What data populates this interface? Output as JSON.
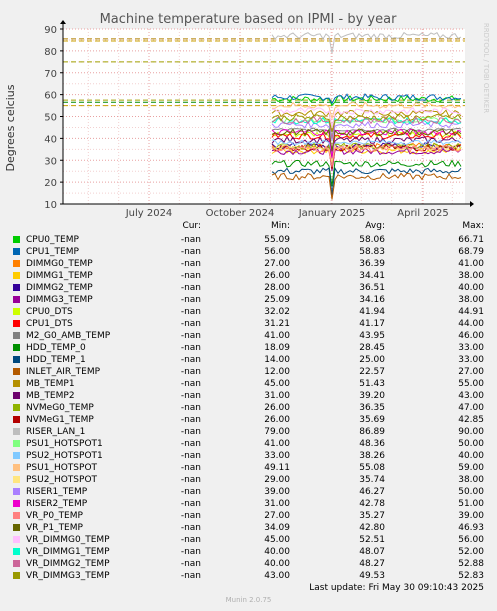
{
  "chart_data": {
    "type": "line",
    "title": "Machine temperature based on IPMI - by year",
    "ylabel": "Degrees celcius",
    "side_label": "RRDTOOL / TOBI OETIKER",
    "ylim": [
      10,
      90
    ],
    "yticks": [
      "10",
      "20",
      "30",
      "40",
      "50",
      "60",
      "70",
      "80",
      "90"
    ],
    "xticks": [
      "July 2024",
      "October 2024",
      "January 2025",
      "April 2025"
    ],
    "warning_lines": [
      55,
      56.5,
      57.5,
      75,
      84.5,
      85.5
    ],
    "grid": true
  },
  "legend": {
    "headers": {
      "cur": "Cur:",
      "min": "Min:",
      "avg": "Avg:",
      "max": "Max:"
    },
    "rows": [
      {
        "name": "CPU0_TEMP",
        "color": "#00cc00",
        "cur": "-nan",
        "min": "55.09",
        "avg": "58.06",
        "max": "66.71"
      },
      {
        "name": "CPU1_TEMP",
        "color": "#0066b3",
        "cur": "-nan",
        "min": "56.00",
        "avg": "58.83",
        "max": "68.79"
      },
      {
        "name": "DIMMG0_TEMP",
        "color": "#ff8000",
        "cur": "-nan",
        "min": "27.00",
        "avg": "36.39",
        "max": "41.00"
      },
      {
        "name": "DIMMG1_TEMP",
        "color": "#ffcc00",
        "cur": "-nan",
        "min": "26.00",
        "avg": "34.41",
        "max": "38.00"
      },
      {
        "name": "DIMMG2_TEMP",
        "color": "#330099",
        "cur": "-nan",
        "min": "28.00",
        "avg": "36.51",
        "max": "40.00"
      },
      {
        "name": "DIMMG3_TEMP",
        "color": "#990099",
        "cur": "-nan",
        "min": "25.09",
        "avg": "34.16",
        "max": "38.00"
      },
      {
        "name": "CPU0_DTS",
        "color": "#ccff00",
        "cur": "-nan",
        "min": "32.02",
        "avg": "41.94",
        "max": "44.91"
      },
      {
        "name": "CPU1_DTS",
        "color": "#ff0000",
        "cur": "-nan",
        "min": "31.21",
        "avg": "41.17",
        "max": "44.00"
      },
      {
        "name": "M2_G0_AMB_TEMP",
        "color": "#808080",
        "cur": "-nan",
        "min": "41.00",
        "avg": "43.95",
        "max": "46.00"
      },
      {
        "name": "HDD_TEMP_0",
        "color": "#008f00",
        "cur": "-nan",
        "min": "18.09",
        "avg": "28.45",
        "max": "33.00"
      },
      {
        "name": "HDD_TEMP_1",
        "color": "#00487d",
        "cur": "-nan",
        "min": "14.00",
        "avg": "25.00",
        "max": "33.00"
      },
      {
        "name": "INLET_AIR_TEMP",
        "color": "#b35a00",
        "cur": "-nan",
        "min": "12.00",
        "avg": "22.57",
        "max": "27.00"
      },
      {
        "name": "MB_TEMP1",
        "color": "#b38f00",
        "cur": "-nan",
        "min": "45.00",
        "avg": "51.43",
        "max": "55.00"
      },
      {
        "name": "MB_TEMP2",
        "color": "#6b006b",
        "cur": "-nan",
        "min": "31.00",
        "avg": "39.20",
        "max": "43.00"
      },
      {
        "name": "NVMeG0_TEMP",
        "color": "#8fb300",
        "cur": "-nan",
        "min": "26.00",
        "avg": "36.35",
        "max": "47.00"
      },
      {
        "name": "NVMeG1_TEMP",
        "color": "#b30000",
        "cur": "-nan",
        "min": "26.00",
        "avg": "35.69",
        "max": "42.85"
      },
      {
        "name": "RISER_LAN_1",
        "color": "#bebebe",
        "cur": "-nan",
        "min": "79.00",
        "avg": "86.89",
        "max": "90.00"
      },
      {
        "name": "PSU1_HOTSPOT1",
        "color": "#80ff80",
        "cur": "-nan",
        "min": "41.00",
        "avg": "48.36",
        "max": "50.00"
      },
      {
        "name": "PSU2_HOTSPOT1",
        "color": "#80c9ff",
        "cur": "-nan",
        "min": "33.00",
        "avg": "38.26",
        "max": "40.00"
      },
      {
        "name": "PSU1_HOTSPOT",
        "color": "#ffc080",
        "cur": "-nan",
        "min": "49.11",
        "avg": "55.08",
        "max": "59.00"
      },
      {
        "name": "PSU2_HOTSPOT",
        "color": "#ffe680",
        "cur": "-nan",
        "min": "29.00",
        "avg": "35.74",
        "max": "38.00"
      },
      {
        "name": "RISER1_TEMP",
        "color": "#aa80ff",
        "cur": "-nan",
        "min": "39.00",
        "avg": "46.27",
        "max": "50.00"
      },
      {
        "name": "RISER2_TEMP",
        "color": "#ee00cc",
        "cur": "-nan",
        "min": "31.00",
        "avg": "42.78",
        "max": "51.00"
      },
      {
        "name": "VR_P0_TEMP",
        "color": "#ff8080",
        "cur": "-nan",
        "min": "27.00",
        "avg": "35.27",
        "max": "39.00"
      },
      {
        "name": "VR_P1_TEMP",
        "color": "#666600",
        "cur": "-nan",
        "min": "34.09",
        "avg": "42.80",
        "max": "46.93"
      },
      {
        "name": "VR_DIMMG0_TEMP",
        "color": "#ffbfff",
        "cur": "-nan",
        "min": "45.00",
        "avg": "52.51",
        "max": "56.00"
      },
      {
        "name": "VR_DIMMG1_TEMP",
        "color": "#00ffcc",
        "cur": "-nan",
        "min": "40.00",
        "avg": "48.07",
        "max": "52.00"
      },
      {
        "name": "VR_DIMMG2_TEMP",
        "color": "#cc6699",
        "cur": "-nan",
        "min": "40.00",
        "avg": "48.27",
        "max": "52.88"
      },
      {
        "name": "VR_DIMMG3_TEMP",
        "color": "#999900",
        "cur": "-nan",
        "min": "43.00",
        "avg": "49.53",
        "max": "52.83"
      }
    ]
  },
  "footer": {
    "last_update": "Last update: Fri May 30 09:10:43 2025",
    "munin": "Munin 2.0.75"
  }
}
